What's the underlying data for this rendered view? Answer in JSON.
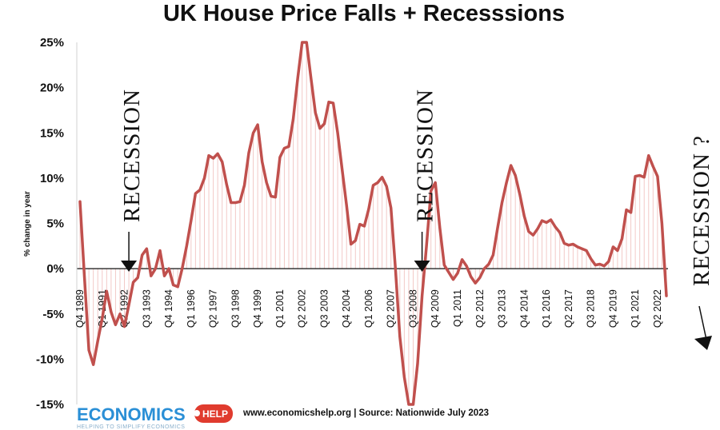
{
  "chart_data": {
    "type": "line",
    "title": "UK House Price Falls + Recesssions",
    "ylabel": "% change in year",
    "xlabel": "",
    "ylim": [
      -15,
      25
    ],
    "yticks": [
      "25%",
      "20%",
      "15%",
      "10%",
      "5%",
      "0%",
      "-5%",
      "-10%",
      "-15%"
    ],
    "ytick_values": [
      25,
      20,
      15,
      10,
      5,
      0,
      -5,
      -10,
      -15
    ],
    "grid": false,
    "line_color": "#c0504d",
    "x_labels": [
      {
        "label": "Q4 1989",
        "i": 0
      },
      {
        "label": "Q1 1991",
        "i": 5
      },
      {
        "label": "Q2 1992",
        "i": 10
      },
      {
        "label": "Q3 1993",
        "i": 15
      },
      {
        "label": "Q4 1994",
        "i": 20
      },
      {
        "label": "Q1 1996",
        "i": 25
      },
      {
        "label": "Q2 1997",
        "i": 30
      },
      {
        "label": "Q3 1998",
        "i": 35
      },
      {
        "label": "Q4 1999",
        "i": 40
      },
      {
        "label": "Q1 2001",
        "i": 45
      },
      {
        "label": "Q2 2002",
        "i": 50
      },
      {
        "label": "Q3 2003",
        "i": 55
      },
      {
        "label": "Q4 2004",
        "i": 60
      },
      {
        "label": "Q1 2006",
        "i": 65
      },
      {
        "label": "Q2 2007",
        "i": 70
      },
      {
        "label": "Q3 2008",
        "i": 75
      },
      {
        "label": "Q4 2009",
        "i": 80
      },
      {
        "label": "Q1 2011",
        "i": 85
      },
      {
        "label": "Q2 2012",
        "i": 90
      },
      {
        "label": "Q3 2013",
        "i": 95
      },
      {
        "label": "Q4 2014",
        "i": 100
      },
      {
        "label": "Q1 2016",
        "i": 105
      },
      {
        "label": "Q2 2017",
        "i": 110
      },
      {
        "label": "Q3 2018",
        "i": 115
      },
      {
        "label": "Q4 2019",
        "i": 120
      },
      {
        "label": "Q1 2021",
        "i": 125
      },
      {
        "label": "Q2 2022",
        "i": 130
      }
    ],
    "series": [
      {
        "values": [
          7.4,
          -1.0,
          -9.0,
          -10.6,
          -8.0,
          -5.5,
          -2.5,
          -4.8,
          -6.2,
          -5.0,
          -6.4,
          -4.0,
          -1.5,
          -1.0,
          1.5,
          2.2,
          -0.8,
          0.0,
          2.0,
          -0.8,
          0.0,
          -1.8,
          -2.0,
          0.0,
          2.5,
          5.3,
          8.3,
          8.7,
          10.0,
          12.5,
          12.2,
          12.7,
          11.8,
          9.3,
          7.3,
          7.3,
          7.4,
          9.2,
          12.8,
          15.0,
          15.9,
          11.8,
          9.5,
          8.0,
          7.9,
          12.3,
          13.3,
          13.5,
          16.5,
          21.0,
          25.0,
          25.0,
          21.0,
          17.2,
          15.5,
          16.0,
          18.4,
          18.3,
          15.0,
          11.0,
          7.0,
          2.7,
          3.1,
          4.9,
          4.7,
          6.6,
          9.2,
          9.5,
          10.1,
          9.1,
          6.7,
          0.0,
          -7.5,
          -12.0,
          -15.0,
          -15.0,
          -10.5,
          -3.0,
          2.5,
          8.6,
          9.5,
          4.5,
          0.4,
          -0.4,
          -1.2,
          -0.5,
          1.0,
          0.3,
          -0.9,
          -1.6,
          -1.0,
          0.0,
          0.5,
          1.5,
          4.5,
          7.3,
          9.5,
          11.4,
          10.3,
          8.2,
          5.8,
          4.1,
          3.7,
          4.4,
          5.3,
          5.1,
          5.4,
          4.6,
          4.0,
          2.8,
          2.6,
          2.7,
          2.4,
          2.2,
          2.0,
          1.1,
          0.4,
          0.5,
          0.3,
          0.8,
          2.4,
          2.0,
          3.3,
          6.5,
          6.2,
          10.2,
          10.3,
          10.1,
          12.5,
          11.3,
          10.2,
          5.0,
          -3.0
        ]
      }
    ],
    "annotations": [
      {
        "text": "RECESSION",
        "i": 11
      },
      {
        "text": "RECESSION",
        "i": 77
      },
      {
        "text": "RECESSION ?",
        "i": 137
      }
    ]
  },
  "footer": {
    "source": "www.economicshelp.org | Source: Nationwide July 2023"
  },
  "logo": {
    "main": "ECONOMICS",
    "badge": "HELP",
    "tagline": "HELPING TO SIMPLIFY ECONOMICS"
  }
}
